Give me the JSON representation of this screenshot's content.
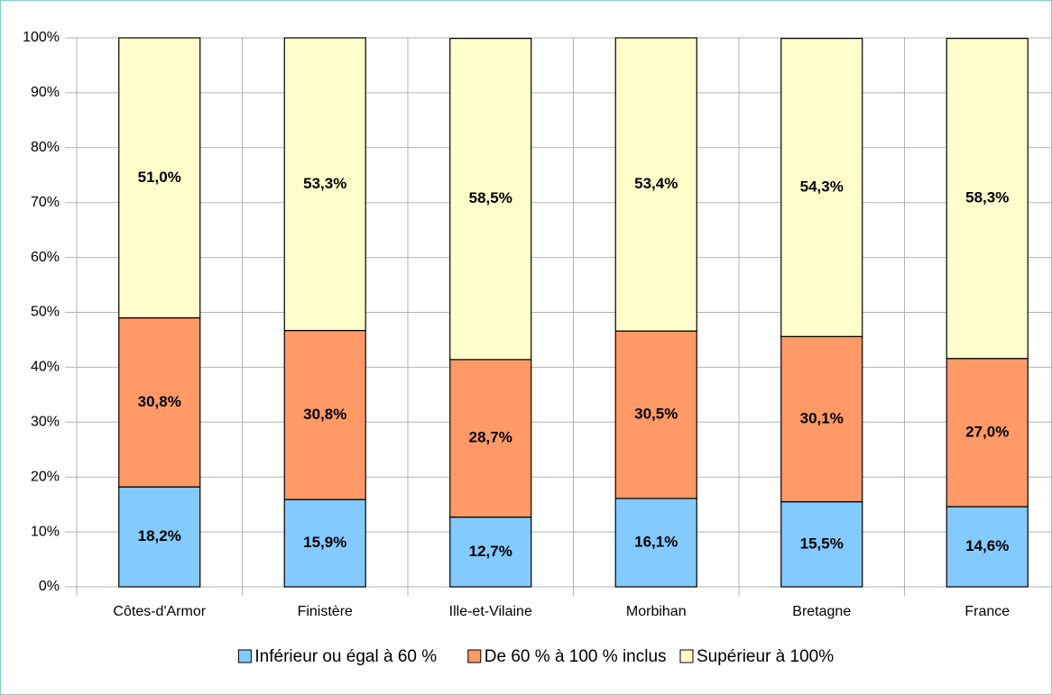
{
  "chart_data": {
    "type": "stacked_bar",
    "categories": [
      "Côtes-d'Armor",
      "Finistère",
      "Ille-et-Vilaine",
      "Morbihan",
      "Bretagne",
      "France"
    ],
    "series": [
      {
        "name": "Inférieur ou égal à 60 %",
        "color": "#83caff",
        "values": [
          18.2,
          15.9,
          12.7,
          16.1,
          15.5,
          14.6
        ],
        "value_labels": [
          "18,2%",
          "15,9%",
          "12,7%",
          "16,1%",
          "15,5%",
          "14,6%"
        ]
      },
      {
        "name": "De 60 % à 100 % inclus",
        "color": "#ff9966",
        "values": [
          30.8,
          30.8,
          28.7,
          30.5,
          30.1,
          27.0
        ],
        "value_labels": [
          "30,8%",
          "30,8%",
          "28,7%",
          "30,5%",
          "30,1%",
          "27,0%"
        ]
      },
      {
        "name": "Supérieur à 100%",
        "color": "#ffffcc",
        "values": [
          51.0,
          53.3,
          58.5,
          53.4,
          54.3,
          58.3
        ],
        "value_labels": [
          "51,0%",
          "53,3%",
          "58,5%",
          "53,4%",
          "54,3%",
          "58,3%"
        ]
      }
    ],
    "ylim": [
      0,
      100
    ],
    "yticks": [
      {
        "value": 0,
        "label": "0%"
      },
      {
        "value": 10,
        "label": "10%"
      },
      {
        "value": 20,
        "label": "20%"
      },
      {
        "value": 30,
        "label": "30%"
      },
      {
        "value": 40,
        "label": "40%"
      },
      {
        "value": 50,
        "label": "50%"
      },
      {
        "value": 60,
        "label": "60%"
      },
      {
        "value": 70,
        "label": "70%"
      },
      {
        "value": 80,
        "label": "80%"
      },
      {
        "value": 90,
        "label": "90%"
      },
      {
        "value": 100,
        "label": "100%"
      }
    ],
    "grid": true,
    "legend": "bottom"
  }
}
